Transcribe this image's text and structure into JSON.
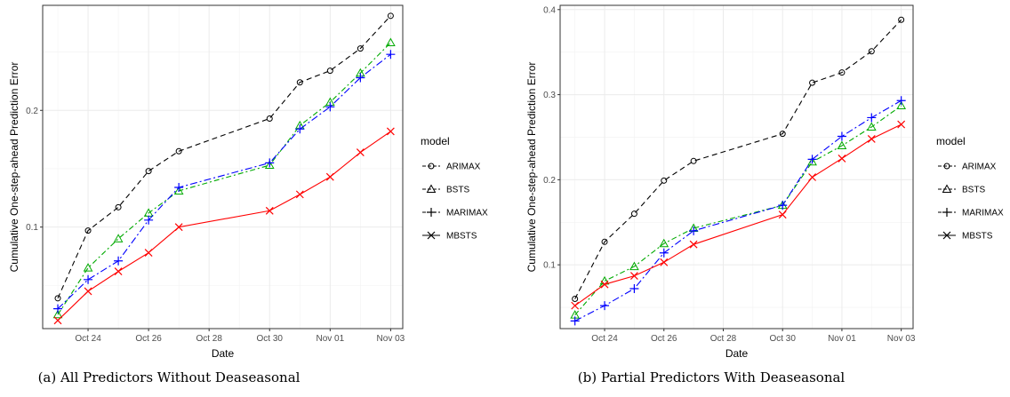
{
  "chart_data": [
    {
      "type": "line",
      "caption": "(a) All Predictors Without Deaseasonal",
      "xlabel": "Date",
      "ylabel": "Cumulative One-step-ahead Prediction Error",
      "x": [
        "Oct 23",
        "Oct 24",
        "Oct 25",
        "Oct 26",
        "Oct 27",
        "Oct 30",
        "Oct 31",
        "Nov 01",
        "Nov 02",
        "Nov 03"
      ],
      "xticks": [
        "Oct 24",
        "Oct 26",
        "Oct 28",
        "Oct 30",
        "Nov 01",
        "Nov 03"
      ],
      "yticks": [
        "0.1",
        "0.2"
      ],
      "ylim": [
        0.013,
        0.29
      ],
      "legend_title": "model",
      "series": [
        {
          "name": "ARIMAX",
          "color": "#000000",
          "marker": "circle",
          "dash": "6,4",
          "values": [
            0.039,
            0.097,
            0.117,
            0.148,
            0.165,
            0.193,
            0.224,
            0.234,
            0.253,
            0.281
          ]
        },
        {
          "name": "BSTS",
          "color": "#00aa00",
          "marker": "triangle",
          "dash": "6,3,2,3",
          "values": [
            0.025,
            0.065,
            0.09,
            0.112,
            0.131,
            0.153,
            0.187,
            0.207,
            0.232,
            0.258
          ]
        },
        {
          "name": "MARIMAX",
          "color": "#0000ff",
          "marker": "plus",
          "dash": "8,3,2,3",
          "values": [
            0.03,
            0.055,
            0.071,
            0.106,
            0.134,
            0.155,
            0.184,
            0.203,
            0.228,
            0.248
          ]
        },
        {
          "name": "MBSTS",
          "color": "#ff0000",
          "marker": "x",
          "dash": "",
          "values": [
            0.02,
            0.045,
            0.062,
            0.078,
            0.1,
            0.114,
            0.128,
            0.143,
            0.164,
            0.182
          ]
        }
      ]
    },
    {
      "type": "line",
      "caption": "(b) Partial Predictors With Deaseasonal",
      "xlabel": "Date",
      "ylabel": "Cumulative One-step-ahead Prediction Error",
      "x": [
        "Oct 23",
        "Oct 24",
        "Oct 25",
        "Oct 26",
        "Oct 27",
        "Oct 30",
        "Oct 31",
        "Nov 01",
        "Nov 02",
        "Nov 03"
      ],
      "xticks": [
        "Oct 24",
        "Oct 26",
        "Oct 28",
        "Oct 30",
        "Nov 01",
        "Nov 03"
      ],
      "yticks": [
        "0.1",
        "0.2",
        "0.3",
        "0.4"
      ],
      "ylim": [
        0.025,
        0.405
      ],
      "legend_title": "model",
      "series": [
        {
          "name": "ARIMAX",
          "color": "#000000",
          "marker": "circle",
          "dash": "6,4",
          "values": [
            0.06,
            0.127,
            0.16,
            0.199,
            0.222,
            0.254,
            0.314,
            0.326,
            0.351,
            0.388
          ]
        },
        {
          "name": "BSTS",
          "color": "#00aa00",
          "marker": "triangle",
          "dash": "6,3,2,3",
          "values": [
            0.041,
            0.081,
            0.098,
            0.125,
            0.143,
            0.17,
            0.221,
            0.24,
            0.262,
            0.287
          ]
        },
        {
          "name": "MARIMAX",
          "color": "#0000ff",
          "marker": "plus",
          "dash": "8,3,2,3",
          "values": [
            0.034,
            0.052,
            0.072,
            0.114,
            0.14,
            0.17,
            0.224,
            0.251,
            0.273,
            0.293
          ]
        },
        {
          "name": "MBSTS",
          "color": "#ff0000",
          "marker": "x",
          "dash": "",
          "values": [
            0.052,
            0.077,
            0.087,
            0.103,
            0.124,
            0.159,
            0.203,
            0.225,
            0.248,
            0.265
          ]
        }
      ]
    }
  ]
}
